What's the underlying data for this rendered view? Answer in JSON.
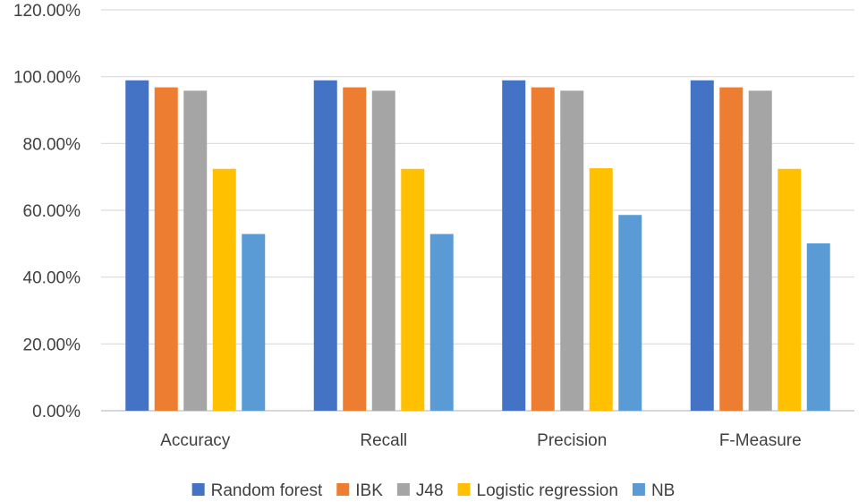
{
  "chart_data": {
    "type": "bar",
    "title": "",
    "xlabel": "",
    "ylabel": "",
    "categories": [
      "Accuracy",
      "Recall",
      "Precision",
      "F-Measure"
    ],
    "series": [
      {
        "name": "Random forest",
        "color": "#4472C4",
        "values": [
          98.9,
          98.9,
          98.9,
          98.9
        ]
      },
      {
        "name": "IBK",
        "color": "#ED7D31",
        "values": [
          96.8,
          96.8,
          96.8,
          96.8
        ]
      },
      {
        "name": "J48",
        "color": "#A5A5A5",
        "values": [
          95.8,
          95.8,
          95.8,
          95.8
        ]
      },
      {
        "name": "Logistic regression",
        "color": "#FFC000",
        "values": [
          72.4,
          72.4,
          72.6,
          72.4
        ]
      },
      {
        "name": "NB",
        "color": "#5B9BD5",
        "values": [
          52.9,
          52.9,
          58.6,
          50.1
        ]
      }
    ],
    "ylim": [
      0,
      120
    ],
    "yticks": [
      "0.00%",
      "20.00%",
      "40.00%",
      "60.00%",
      "80.00%",
      "100.00%",
      "120.00%"
    ],
    "grid": true,
    "legend_position": "bottom"
  }
}
